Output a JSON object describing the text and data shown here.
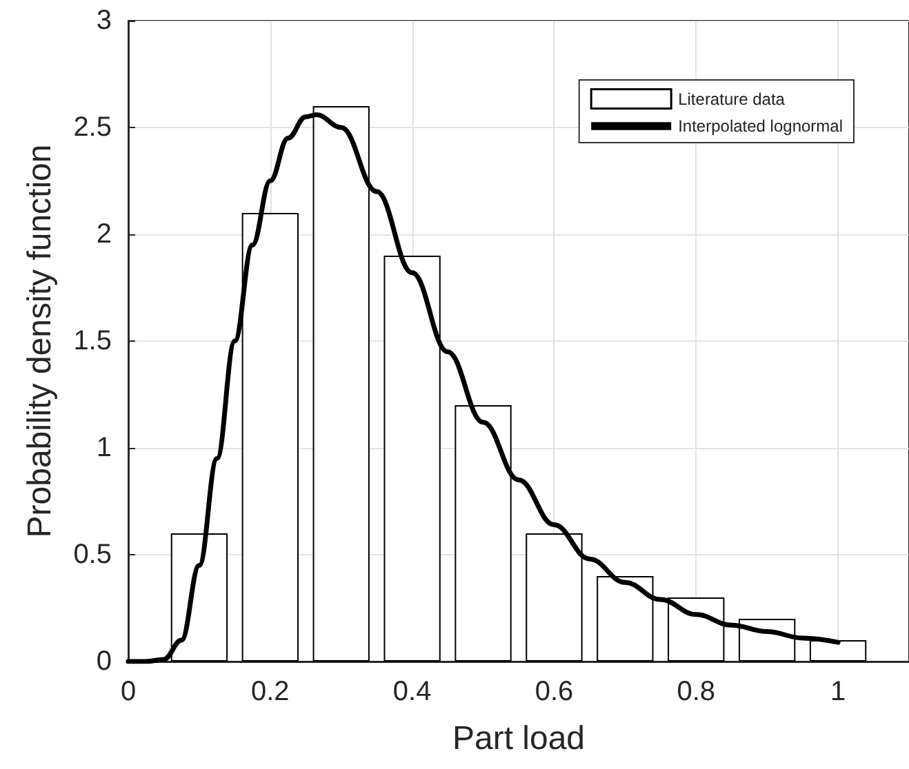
{
  "chart_data": {
    "type": "bar",
    "xlabel": "Part load",
    "ylabel": "Probability density function",
    "x": [
      0.1,
      0.2,
      0.3,
      0.4,
      0.5,
      0.6,
      0.7,
      0.8,
      0.9,
      1.0
    ],
    "series": [
      {
        "name": "Literature data",
        "color": "#000000",
        "values": [
          0.6,
          2.1,
          2.6,
          1.9,
          1.2,
          0.6,
          0.4,
          0.3,
          0.2,
          0.1
        ]
      },
      {
        "name": "Interpolated lognormal",
        "type": "line",
        "color": "#000000",
        "x": [
          0,
          0.025,
          0.05,
          0.075,
          0.1,
          0.125,
          0.15,
          0.175,
          0.2,
          0.225,
          0.25,
          0.265,
          0.3,
          0.35,
          0.4,
          0.45,
          0.5,
          0.55,
          0.6,
          0.65,
          0.7,
          0.75,
          0.8,
          0.85,
          0.9,
          0.95,
          1.0
        ],
        "values": [
          0,
          0,
          0.01,
          0.1,
          0.45,
          0.95,
          1.5,
          1.95,
          2.25,
          2.45,
          2.55,
          2.56,
          2.5,
          2.2,
          1.82,
          1.45,
          1.12,
          0.85,
          0.64,
          0.48,
          0.37,
          0.29,
          0.22,
          0.17,
          0.14,
          0.11,
          0.09
        ]
      }
    ],
    "xlim": [
      0,
      1.1
    ],
    "xticks": [
      0,
      0.2,
      0.4,
      0.6,
      0.8,
      1
    ],
    "ylim": [
      0,
      3
    ],
    "yticks": [
      0,
      0.5,
      1,
      1.5,
      2,
      2.5,
      3
    ],
    "grid": true,
    "legend": "top right",
    "marker": "none",
    "line_style": "solid"
  }
}
